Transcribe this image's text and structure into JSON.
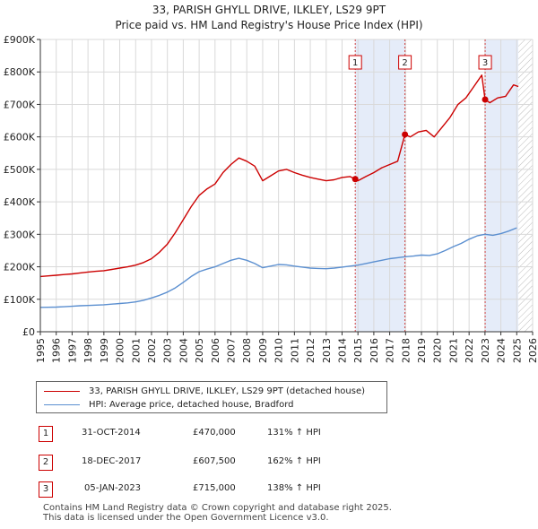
{
  "chart_data": {
    "type": "line",
    "title": "33, PARISH GHYLL DRIVE, ILKLEY, LS29 9PT",
    "subtitle": "Price paid vs. HM Land Registry's House Price Index (HPI)",
    "x_range": [
      1995,
      2026
    ],
    "ylim": [
      0,
      900000
    ],
    "y_ticks": [
      {
        "value": 0,
        "label": "£0"
      },
      {
        "value": 100000,
        "label": "£100K"
      },
      {
        "value": 200000,
        "label": "£200K"
      },
      {
        "value": 300000,
        "label": "£300K"
      },
      {
        "value": 400000,
        "label": "£400K"
      },
      {
        "value": 500000,
        "label": "£500K"
      },
      {
        "value": 600000,
        "label": "£600K"
      },
      {
        "value": 700000,
        "label": "£700K"
      },
      {
        "value": 800000,
        "label": "£800K"
      },
      {
        "value": 900000,
        "label": "£900K"
      }
    ],
    "x_ticks": [
      "1995",
      "1996",
      "1997",
      "1998",
      "1999",
      "2000",
      "2001",
      "2002",
      "2003",
      "2004",
      "2005",
      "2006",
      "2007",
      "2008",
      "2009",
      "2010",
      "2011",
      "2012",
      "2013",
      "2014",
      "2015",
      "2016",
      "2017",
      "2018",
      "2019",
      "2020",
      "2021",
      "2022",
      "2023",
      "2024",
      "2025",
      "2026"
    ],
    "grid": true,
    "series": [
      {
        "name": "33, PARISH GHYLL DRIVE, ILKLEY, LS29 9PT (detached house)",
        "color": "#cc0000",
        "points": [
          [
            1995.0,
            170000
          ],
          [
            1995.5,
            172000
          ],
          [
            1996.0,
            174000
          ],
          [
            1996.5,
            176000
          ],
          [
            1997.0,
            178000
          ],
          [
            1997.5,
            181000
          ],
          [
            1998.0,
            184000
          ],
          [
            1998.5,
            186000
          ],
          [
            1999.0,
            188000
          ],
          [
            1999.5,
            192000
          ],
          [
            2000.0,
            196000
          ],
          [
            2000.5,
            200000
          ],
          [
            2001.0,
            205000
          ],
          [
            2001.5,
            213000
          ],
          [
            2002.0,
            225000
          ],
          [
            2002.5,
            245000
          ],
          [
            2003.0,
            270000
          ],
          [
            2003.5,
            305000
          ],
          [
            2004.0,
            345000
          ],
          [
            2004.5,
            385000
          ],
          [
            2005.0,
            420000
          ],
          [
            2005.5,
            440000
          ],
          [
            2006.0,
            455000
          ],
          [
            2006.5,
            490000
          ],
          [
            2007.0,
            515000
          ],
          [
            2007.5,
            535000
          ],
          [
            2008.0,
            525000
          ],
          [
            2008.5,
            510000
          ],
          [
            2009.0,
            465000
          ],
          [
            2009.5,
            480000
          ],
          [
            2010.0,
            495000
          ],
          [
            2010.5,
            500000
          ],
          [
            2011.0,
            490000
          ],
          [
            2011.5,
            482000
          ],
          [
            2012.0,
            475000
          ],
          [
            2012.5,
            470000
          ],
          [
            2013.0,
            465000
          ],
          [
            2013.5,
            468000
          ],
          [
            2014.0,
            475000
          ],
          [
            2014.5,
            478000
          ],
          [
            2014.83,
            470000
          ],
          [
            2015.0,
            465000
          ],
          [
            2015.5,
            478000
          ],
          [
            2016.0,
            490000
          ],
          [
            2016.5,
            505000
          ],
          [
            2017.0,
            515000
          ],
          [
            2017.5,
            525000
          ],
          [
            2017.96,
            607500
          ],
          [
            2018.3,
            600000
          ],
          [
            2018.8,
            615000
          ],
          [
            2019.3,
            620000
          ],
          [
            2019.8,
            600000
          ],
          [
            2020.3,
            630000
          ],
          [
            2020.8,
            660000
          ],
          [
            2021.3,
            700000
          ],
          [
            2021.8,
            720000
          ],
          [
            2022.3,
            755000
          ],
          [
            2022.8,
            790000
          ],
          [
            2023.01,
            715000
          ],
          [
            2023.3,
            705000
          ],
          [
            2023.8,
            720000
          ],
          [
            2024.3,
            725000
          ],
          [
            2024.8,
            760000
          ],
          [
            2025.1,
            755000
          ]
        ]
      },
      {
        "name": "HPI: Average price, detached house, Bradford",
        "color": "#5b8fd0",
        "points": [
          [
            1995.0,
            75000
          ],
          [
            1995.5,
            75500
          ],
          [
            1996.0,
            76000
          ],
          [
            1996.5,
            77000
          ],
          [
            1997.0,
            78500
          ],
          [
            1997.5,
            80000
          ],
          [
            1998.0,
            81000
          ],
          [
            1998.5,
            82000
          ],
          [
            1999.0,
            83000
          ],
          [
            1999.5,
            85000
          ],
          [
            2000.0,
            87000
          ],
          [
            2000.5,
            89000
          ],
          [
            2001.0,
            92000
          ],
          [
            2001.5,
            97000
          ],
          [
            2002.0,
            104000
          ],
          [
            2002.5,
            112000
          ],
          [
            2003.0,
            122000
          ],
          [
            2003.5,
            135000
          ],
          [
            2004.0,
            152000
          ],
          [
            2004.5,
            170000
          ],
          [
            2005.0,
            185000
          ],
          [
            2005.5,
            193000
          ],
          [
            2006.0,
            200000
          ],
          [
            2006.5,
            210000
          ],
          [
            2007.0,
            220000
          ],
          [
            2007.5,
            226000
          ],
          [
            2008.0,
            220000
          ],
          [
            2008.5,
            210000
          ],
          [
            2009.0,
            197000
          ],
          [
            2009.5,
            202000
          ],
          [
            2010.0,
            207000
          ],
          [
            2010.5,
            206000
          ],
          [
            2011.0,
            202000
          ],
          [
            2011.5,
            199000
          ],
          [
            2012.0,
            196000
          ],
          [
            2012.5,
            195000
          ],
          [
            2013.0,
            194000
          ],
          [
            2013.5,
            196000
          ],
          [
            2014.0,
            199000
          ],
          [
            2014.5,
            202000
          ],
          [
            2015.0,
            205000
          ],
          [
            2015.5,
            210000
          ],
          [
            2016.0,
            215000
          ],
          [
            2016.5,
            220000
          ],
          [
            2017.0,
            225000
          ],
          [
            2017.5,
            228000
          ],
          [
            2018.0,
            231000
          ],
          [
            2018.5,
            233000
          ],
          [
            2019.0,
            236000
          ],
          [
            2019.5,
            235000
          ],
          [
            2020.0,
            240000
          ],
          [
            2020.5,
            250000
          ],
          [
            2021.0,
            262000
          ],
          [
            2021.5,
            272000
          ],
          [
            2022.0,
            285000
          ],
          [
            2022.5,
            295000
          ],
          [
            2023.0,
            300000
          ],
          [
            2023.5,
            297000
          ],
          [
            2024.0,
            302000
          ],
          [
            2024.5,
            310000
          ],
          [
            2025.0,
            320000
          ]
        ]
      }
    ],
    "sales": [
      {
        "label": "1",
        "x": 2014.83,
        "value": 470000
      },
      {
        "label": "2",
        "x": 2017.96,
        "value": 607500
      },
      {
        "label": "3",
        "x": 2023.01,
        "value": 715000
      }
    ],
    "shaded_ranges": [
      {
        "from": 2014.83,
        "to": 2017.96
      },
      {
        "from": 2023.01,
        "to": 2025.1
      }
    ],
    "hatched_range": {
      "from": 2025.1,
      "to": 2026
    }
  },
  "legend": {
    "items": [
      {
        "label": "33, PARISH GHYLL DRIVE, ILKLEY, LS29 9PT (detached house)",
        "color": "#cc0000"
      },
      {
        "label": "HPI: Average price, detached house, Bradford",
        "color": "#5b8fd0"
      }
    ]
  },
  "sales_table": [
    {
      "num": "1",
      "date": "31-OCT-2014",
      "price": "£470,000",
      "hpi": "131% ↑ HPI"
    },
    {
      "num": "2",
      "date": "18-DEC-2017",
      "price": "£607,500",
      "hpi": "162% ↑ HPI"
    },
    {
      "num": "3",
      "date": "05-JAN-2023",
      "price": "£715,000",
      "hpi": "138% ↑ HPI"
    }
  ],
  "footer": {
    "line1": "Contains HM Land Registry data © Crown copyright and database right 2025.",
    "line2": "This data is licensed under the Open Government Licence v3.0."
  }
}
